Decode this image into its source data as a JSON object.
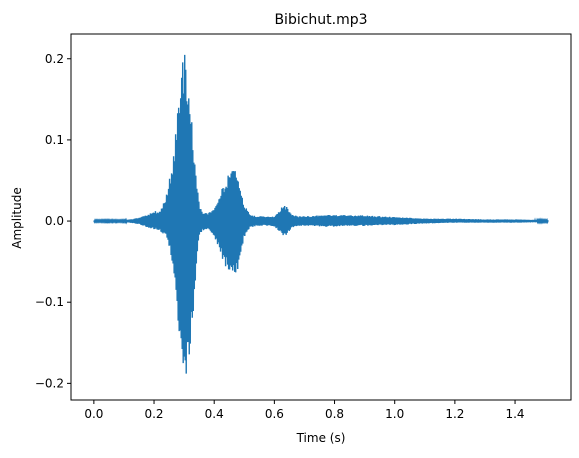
{
  "chart_data": {
    "type": "line",
    "title": "Bibichut.mp3",
    "xlabel": "Time (s)",
    "ylabel": "Amplitude",
    "xlim": [
      -0.076,
      1.586
    ],
    "ylim": [
      -0.2205,
      0.2305
    ],
    "xticks": [
      0.0,
      0.2,
      0.4,
      0.6,
      0.8,
      1.0,
      1.2,
      1.4
    ],
    "xtick_labels": [
      "0.0",
      "0.2",
      "0.4",
      "0.6",
      "0.8",
      "1.0",
      "1.2",
      "1.4"
    ],
    "yticks": [
      -0.2,
      -0.1,
      0.0,
      0.1,
      0.2
    ],
    "ytick_labels": [
      "−0.2",
      "−0.1",
      "0.0",
      "0.1",
      "0.2"
    ],
    "grid": false,
    "legend": "none",
    "series": [
      {
        "color": "#1f77b4",
        "x": [
          0.0,
          0.1,
          0.12,
          0.15,
          0.18,
          0.2,
          0.22,
          0.24,
          0.26,
          0.27,
          0.28,
          0.29,
          0.3,
          0.31,
          0.32,
          0.33,
          0.34,
          0.35,
          0.36,
          0.38,
          0.4,
          0.42,
          0.44,
          0.45,
          0.46,
          0.47,
          0.48,
          0.49,
          0.5,
          0.52,
          0.54,
          0.58,
          0.6,
          0.62,
          0.63,
          0.64,
          0.65,
          0.66,
          0.68,
          0.7,
          0.75,
          0.8,
          0.85,
          0.9,
          0.95,
          1.0,
          1.05,
          1.1,
          1.2,
          1.3,
          1.4,
          1.51
        ],
        "upper": [
          0.001,
          0.001,
          0.002,
          0.004,
          0.008,
          0.012,
          0.013,
          0.03,
          0.07,
          0.1,
          0.15,
          0.2,
          0.209,
          0.195,
          0.15,
          0.1,
          0.06,
          0.02,
          0.012,
          0.01,
          0.015,
          0.035,
          0.05,
          0.06,
          0.07,
          0.068,
          0.055,
          0.04,
          0.02,
          0.008,
          0.006,
          0.006,
          0.006,
          0.015,
          0.02,
          0.018,
          0.012,
          0.008,
          0.006,
          0.006,
          0.007,
          0.008,
          0.007,
          0.007,
          0.006,
          0.005,
          0.004,
          0.003,
          0.003,
          0.002,
          0.002,
          0.001
        ],
        "lower": [
          -0.001,
          -0.001,
          -0.002,
          -0.004,
          -0.008,
          -0.01,
          -0.012,
          -0.02,
          -0.05,
          -0.08,
          -0.13,
          -0.18,
          -0.2,
          -0.195,
          -0.16,
          -0.12,
          -0.06,
          -0.02,
          -0.012,
          -0.01,
          -0.02,
          -0.04,
          -0.058,
          -0.065,
          -0.07,
          -0.066,
          -0.06,
          -0.04,
          -0.02,
          -0.008,
          -0.006,
          -0.006,
          -0.007,
          -0.014,
          -0.018,
          -0.017,
          -0.012,
          -0.008,
          -0.006,
          -0.006,
          -0.007,
          -0.007,
          -0.006,
          -0.006,
          -0.005,
          -0.005,
          -0.004,
          -0.003,
          -0.002,
          -0.002,
          -0.002,
          -0.001
        ]
      }
    ]
  }
}
